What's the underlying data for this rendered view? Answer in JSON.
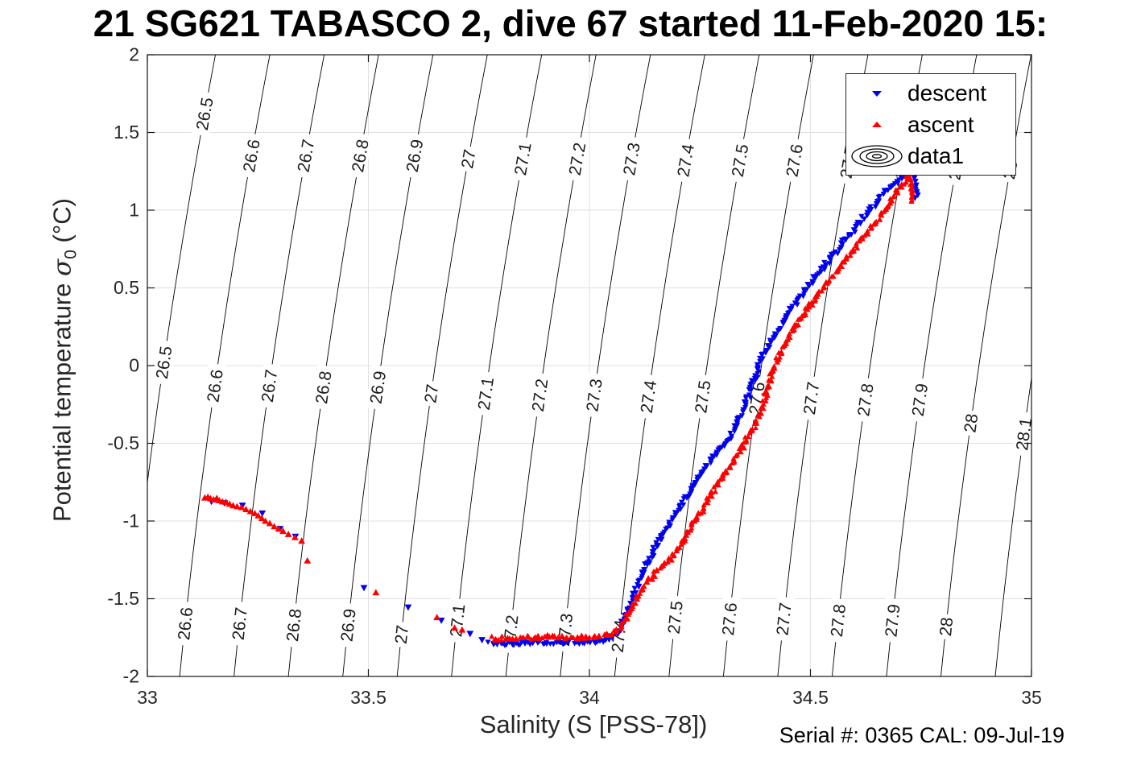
{
  "title": "21 SG621 TABASCO 2, dive 67 started 11-Feb-2020 15:",
  "footer": "Serial #: 0365  CAL: 09-Jul-19",
  "colors": {
    "descent": "#0000ee",
    "ascent": "#ff0000",
    "contour": "#000000",
    "grid": "#e0e0e0",
    "axis": "#151515",
    "tick_label": "#262626"
  },
  "axes": {
    "xlabel": "Salinity (S [PSS-78])",
    "ylabel_prefix": "Potential temperature ",
    "ylabel_symbol": "σ",
    "ylabel_symbol_sub": "0",
    "ylabel_suffix": " (°C)"
  },
  "legend": {
    "items": [
      {
        "label": "descent",
        "marker": "triangle-down",
        "color": "#0000ee"
      },
      {
        "label": "ascent",
        "marker": "triangle-up",
        "color": "#ff0000"
      },
      {
        "label": "data1",
        "marker": "contour-rings",
        "color": "#000000"
      }
    ]
  },
  "chart_data": {
    "type": "scatter",
    "title": "21 SG621 TABASCO 2, dive 67 started 11-Feb-2020 15:",
    "xlabel": "Salinity (S [PSS-78])",
    "ylabel": "Potential temperature σ0 (°C)",
    "xlim": [
      33,
      35
    ],
    "ylim": [
      -2,
      2
    ],
    "grid": true,
    "x_ticks": [
      33,
      33.5,
      34,
      34.5,
      35
    ],
    "x_tick_labels": [
      "33",
      "33.5",
      "34",
      "34.5",
      "35"
    ],
    "y_ticks": [
      -2,
      -1.5,
      -1,
      -0.5,
      0,
      0.5,
      1,
      1.5,
      2
    ],
    "y_tick_labels": [
      "-2",
      "-1.5",
      "-1",
      "-0.5",
      "0",
      "0.5",
      "1",
      "1.5",
      "2"
    ],
    "contours": {
      "description": "potential density sigma0 isopycnals, label_t = temperatures where inline labels sit",
      "fit": {
        "s_ref": 33.565,
        "ref_level": 27,
        "dsig_ds": 0.813,
        "a": 0.035,
        "b": 0.004
      },
      "levels": [
        {
          "value": 26.5,
          "label": "26.5",
          "label_t": [
            1.62,
            0.02
          ]
        },
        {
          "value": 26.6,
          "label": "26.6",
          "label_t": [
            1.35,
            -0.13,
            -1.66
          ]
        },
        {
          "value": 26.7,
          "label": "26.7",
          "label_t": [
            1.35,
            -0.13,
            -1.66
          ]
        },
        {
          "value": 26.8,
          "label": "26.8",
          "label_t": [
            1.35,
            -0.14,
            -1.67
          ]
        },
        {
          "value": 26.9,
          "label": "26.9",
          "label_t": [
            1.35,
            -0.14,
            -1.67
          ]
        },
        {
          "value": 27,
          "label": "27",
          "label_t": [
            1.33,
            -0.18,
            -1.73
          ]
        },
        {
          "value": 27.1,
          "label": "27.1",
          "label_t": [
            1.33,
            -0.18,
            -1.64
          ]
        },
        {
          "value": 27.2,
          "label": "27.2",
          "label_t": [
            1.33,
            -0.19,
            -1.71
          ]
        },
        {
          "value": 27.3,
          "label": "27.3",
          "label_t": [
            1.33,
            -0.19,
            -1.7
          ]
        },
        {
          "value": 27.4,
          "label": "27.4",
          "label_t": [
            1.32,
            -0.2,
            -1.74
          ]
        },
        {
          "value": 27.5,
          "label": "27.5",
          "label_t": [
            1.32,
            -0.2,
            -1.62
          ]
        },
        {
          "value": 27.6,
          "label": "27.6",
          "label_t": [
            1.32,
            -0.21,
            -1.63
          ]
        },
        {
          "value": 27.7,
          "label": "27.7",
          "label_t": [
            1.31,
            -0.21,
            -1.63
          ]
        },
        {
          "value": 27.8,
          "label": "27.8",
          "label_t": [
            1.31,
            -0.22,
            -1.64
          ]
        },
        {
          "value": 27.9,
          "label": "27.9",
          "label_t": [
            1.3,
            -0.22,
            -1.64
          ]
        },
        {
          "value": 28,
          "label": "28",
          "label_t": [
            1.26,
            -0.37,
            -1.68
          ]
        },
        {
          "value": 28.1,
          "label": "28.1",
          "label_t": [
            -0.44
          ]
        }
      ]
    },
    "series": [
      {
        "name": "descent",
        "color": "#0000ee",
        "marker": "triangle-down",
        "path": [
          [
            33.775,
            -1.79
          ],
          [
            33.83,
            -1.785
          ],
          [
            33.89,
            -1.78
          ],
          [
            33.95,
            -1.78
          ],
          [
            34.0,
            -1.775
          ],
          [
            34.045,
            -1.765
          ],
          [
            34.065,
            -1.72
          ],
          [
            34.08,
            -1.62
          ],
          [
            34.1,
            -1.47
          ],
          [
            34.125,
            -1.3
          ],
          [
            34.155,
            -1.14
          ],
          [
            34.19,
            -0.98
          ],
          [
            34.225,
            -0.82
          ],
          [
            34.26,
            -0.66
          ],
          [
            34.3,
            -0.52
          ],
          [
            34.32,
            -0.45
          ],
          [
            34.345,
            -0.31
          ],
          [
            34.365,
            -0.15
          ],
          [
            34.385,
            0.02
          ],
          [
            34.405,
            0.14
          ],
          [
            34.43,
            0.24
          ],
          [
            34.455,
            0.36
          ],
          [
            34.475,
            0.43
          ],
          [
            34.505,
            0.55
          ],
          [
            34.54,
            0.67
          ],
          [
            34.57,
            0.78
          ],
          [
            34.6,
            0.88
          ],
          [
            34.635,
            1.0
          ],
          [
            34.665,
            1.1
          ],
          [
            34.7,
            1.2
          ],
          [
            34.715,
            1.26
          ],
          [
            34.725,
            1.31
          ]
        ],
        "path2": [
          [
            34.73,
            1.3
          ],
          [
            34.737,
            1.2
          ],
          [
            34.742,
            1.1
          ],
          [
            34.737,
            1.06
          ]
        ],
        "sparse": [
          [
            33.145,
            -0.875
          ],
          [
            33.175,
            -0.885
          ],
          [
            33.215,
            -0.9
          ],
          [
            33.26,
            -0.95
          ],
          [
            33.3,
            -1.05
          ],
          [
            33.335,
            -1.1
          ],
          [
            33.49,
            -1.43
          ],
          [
            33.59,
            -1.555
          ],
          [
            33.665,
            -1.64
          ],
          [
            33.73,
            -1.725
          ],
          [
            33.757,
            -1.765
          ]
        ]
      },
      {
        "name": "ascent",
        "color": "#ff0000",
        "marker": "triangle-up",
        "path": [
          [
            33.78,
            -1.755
          ],
          [
            33.84,
            -1.75
          ],
          [
            33.9,
            -1.745
          ],
          [
            33.96,
            -1.75
          ],
          [
            34.01,
            -1.745
          ],
          [
            34.05,
            -1.73
          ],
          [
            34.07,
            -1.68
          ],
          [
            34.09,
            -1.58
          ],
          [
            34.11,
            -1.48
          ],
          [
            34.13,
            -1.4
          ],
          [
            34.15,
            -1.335
          ],
          [
            34.17,
            -1.27
          ],
          [
            34.185,
            -1.24
          ],
          [
            34.21,
            -1.13
          ],
          [
            34.24,
            -1.0
          ],
          [
            34.27,
            -0.86
          ],
          [
            34.3,
            -0.72
          ],
          [
            34.33,
            -0.6
          ],
          [
            34.355,
            -0.48
          ],
          [
            34.38,
            -0.35
          ],
          [
            34.4,
            -0.19
          ],
          [
            34.415,
            -0.03
          ],
          [
            34.435,
            0.1
          ],
          [
            34.455,
            0.2
          ],
          [
            34.485,
            0.33
          ],
          [
            34.505,
            0.41
          ],
          [
            34.535,
            0.52
          ],
          [
            34.565,
            0.63
          ],
          [
            34.595,
            0.74
          ],
          [
            34.63,
            0.86
          ],
          [
            34.66,
            0.97
          ],
          [
            34.69,
            1.09
          ],
          [
            34.715,
            1.19
          ],
          [
            34.73,
            1.26
          ],
          [
            34.74,
            1.31
          ]
        ],
        "path2": [
          [
            34.72,
            1.3
          ],
          [
            34.727,
            1.19
          ],
          [
            34.732,
            1.09
          ],
          [
            34.726,
            1.05
          ]
        ],
        "sparse": [
          [
            33.13,
            -0.85
          ],
          [
            33.137,
            -0.845
          ],
          [
            33.143,
            -0.855
          ],
          [
            33.15,
            -0.862
          ],
          [
            33.157,
            -0.853
          ],
          [
            33.163,
            -0.868
          ],
          [
            33.17,
            -0.875
          ],
          [
            33.178,
            -0.878
          ],
          [
            33.186,
            -0.89
          ],
          [
            33.194,
            -0.9
          ],
          [
            33.203,
            -0.906
          ],
          [
            33.213,
            -0.912
          ],
          [
            33.223,
            -0.925
          ],
          [
            33.233,
            -0.938
          ],
          [
            33.243,
            -0.95
          ],
          [
            33.251,
            -0.965
          ],
          [
            33.259,
            -0.982
          ],
          [
            33.267,
            -1.0
          ],
          [
            33.277,
            -1.015
          ],
          [
            33.287,
            -1.035
          ],
          [
            33.297,
            -1.05
          ],
          [
            33.307,
            -1.065
          ],
          [
            33.319,
            -1.085
          ],
          [
            33.334,
            -1.105
          ],
          [
            33.349,
            -1.128
          ],
          [
            33.362,
            -1.255
          ],
          [
            33.517,
            -1.46
          ],
          [
            33.655,
            -1.62
          ],
          [
            33.695,
            -1.687
          ],
          [
            33.712,
            -1.7
          ]
        ]
      }
    ]
  }
}
